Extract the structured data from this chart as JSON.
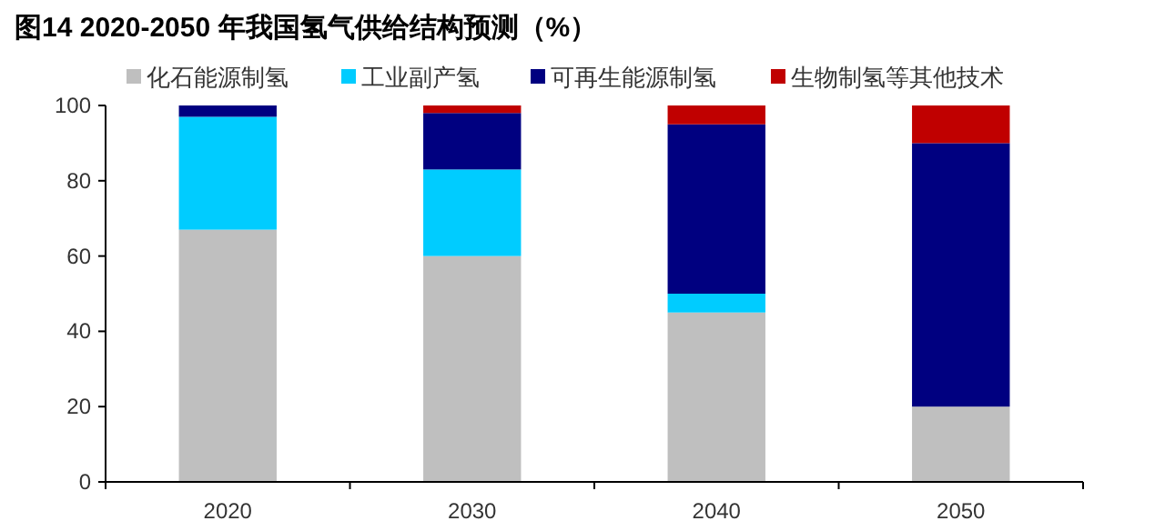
{
  "chart_data": {
    "type": "bar",
    "title": "图14 2020-2050 年我国氢气供给结构预测（%）",
    "stacked": true,
    "categories": [
      "2020",
      "2030",
      "2040",
      "2050"
    ],
    "series": [
      {
        "name": "化石能源制氢",
        "color": "#bfbfbf",
        "values": [
          67,
          60,
          45,
          20
        ]
      },
      {
        "name": "工业副产氢",
        "color": "#00ccff",
        "values": [
          30,
          23,
          5,
          0
        ]
      },
      {
        "name": "可再生能源制氢",
        "color": "#000080",
        "values": [
          3,
          15,
          45,
          70
        ]
      },
      {
        "name": "生物制氢等其他技术",
        "color": "#c00000",
        "values": [
          0,
          2,
          5,
          10
        ]
      }
    ],
    "ylim": [
      0,
      100
    ],
    "yticks": [
      0,
      20,
      40,
      60,
      80,
      100
    ],
    "legend": "top",
    "grid": false
  }
}
